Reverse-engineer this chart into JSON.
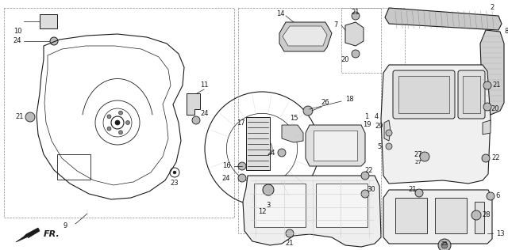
{
  "bg_color": "#ffffff",
  "line_color": "#1a1a1a",
  "figsize": [
    6.4,
    3.16
  ],
  "dpi": 100
}
